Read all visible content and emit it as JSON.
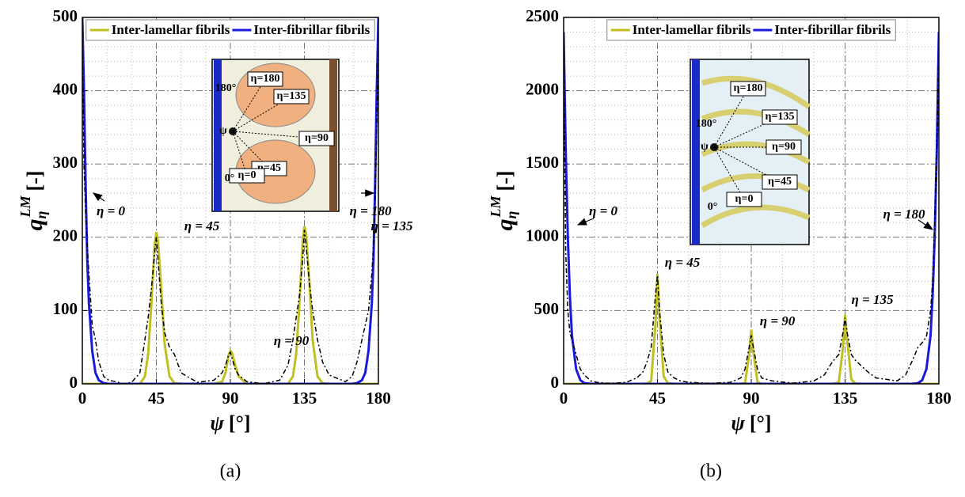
{
  "chart_data": [
    {
      "type": "line",
      "caption": "(a)",
      "xlabel": {
        "var": "ψ",
        "unit": "[°]"
      },
      "ylabel": {
        "base": "q",
        "sub": "η",
        "sup": "LM",
        "unit": "[-]"
      },
      "xlim": [
        0,
        180
      ],
      "xticks": [
        0,
        45,
        90,
        135,
        180
      ],
      "ylim": [
        0,
        500
      ],
      "yticks": [
        0,
        100,
        200,
        300,
        400,
        500
      ],
      "grid": true,
      "legend": "top",
      "x": [
        0,
        1,
        2,
        3,
        4,
        6,
        8,
        10,
        13,
        16,
        20,
        25,
        30,
        35,
        38,
        40,
        42,
        44,
        45,
        46,
        48,
        50,
        53,
        56,
        60,
        70,
        80,
        85,
        87,
        89,
        90,
        91,
        93,
        95,
        100,
        110,
        120,
        125,
        128,
        130,
        132,
        134,
        135,
        136,
        138,
        140,
        143,
        146,
        150,
        160,
        164,
        167,
        170,
        172,
        174,
        176,
        177,
        178,
        179,
        180
      ],
      "series": [
        {
          "name": "Inter-lamellar fibrils",
          "color": "#c0c020",
          "style": "solid",
          "values": [
            0,
            0,
            0,
            0,
            0,
            0,
            0,
            0,
            0,
            0,
            0,
            0,
            0,
            0,
            10,
            40,
            110,
            190,
            207,
            195,
            130,
            55,
            10,
            1,
            0,
            0,
            0,
            3,
            15,
            40,
            45,
            42,
            25,
            10,
            0,
            0,
            0,
            0,
            10,
            40,
            110,
            195,
            215,
            205,
            140,
            60,
            10,
            1,
            0,
            0,
            0,
            0,
            0,
            0,
            0,
            0,
            0,
            0,
            0,
            0
          ]
        },
        {
          "name": "Inter-fibrillar fibrils",
          "color": "#1a1adc",
          "style": "solid",
          "values": [
            500,
            400,
            270,
            170,
            110,
            45,
            15,
            5,
            1,
            0,
            0,
            0,
            0,
            0,
            0,
            0,
            0,
            0,
            0,
            0,
            0,
            0,
            0,
            0,
            0,
            0,
            0,
            0,
            0,
            0,
            0,
            0,
            0,
            0,
            0,
            0,
            0,
            0,
            0,
            0,
            0,
            0,
            0,
            0,
            0,
            0,
            0,
            0,
            0,
            0,
            0,
            1,
            5,
            15,
            45,
            110,
            170,
            270,
            400,
            500
          ]
        },
        {
          "color": "#000000",
          "style": "dashdot",
          "values": [
            480,
            300,
            230,
            190,
            150,
            80,
            60,
            30,
            10,
            5,
            3,
            0,
            2,
            15,
            60,
            90,
            130,
            180,
            200,
            170,
            110,
            70,
            50,
            40,
            15,
            2,
            5,
            15,
            25,
            40,
            43,
            35,
            20,
            12,
            3,
            0,
            5,
            25,
            60,
            90,
            120,
            170,
            210,
            190,
            140,
            100,
            60,
            30,
            12,
            3,
            10,
            30,
            60,
            80,
            100,
            150,
            190,
            250,
            350,
            480
          ]
        }
      ],
      "annotations": [
        "η = 0",
        "η = 45",
        "η = 90",
        "η = 135",
        "η = 180"
      ],
      "inset_labels": [
        "η=180",
        "η=135",
        "η=90",
        "η=45",
        "η=0",
        "180°",
        "0°",
        "ψ"
      ]
    },
    {
      "type": "line",
      "caption": "(b)",
      "xlabel": {
        "var": "ψ",
        "unit": "[°]"
      },
      "ylabel": {
        "base": "q",
        "sub": "η",
        "sup": "LM",
        "unit": "[-]"
      },
      "xlim": [
        0,
        180
      ],
      "xticks": [
        0,
        45,
        90,
        135,
        180
      ],
      "ylim": [
        0,
        2500
      ],
      "yticks": [
        0,
        500,
        1000,
        1500,
        2000,
        2500
      ],
      "grid": true,
      "legend": "top",
      "x": [
        0,
        1,
        2,
        3,
        4,
        6,
        8,
        10,
        13,
        16,
        20,
        25,
        30,
        35,
        38,
        40,
        42,
        44,
        45,
        46,
        48,
        50,
        53,
        56,
        60,
        70,
        80,
        85,
        87,
        89,
        90,
        91,
        93,
        95,
        100,
        110,
        120,
        125,
        128,
        130,
        132,
        134,
        135,
        136,
        138,
        140,
        143,
        146,
        150,
        160,
        164,
        167,
        170,
        172,
        174,
        176,
        177,
        178,
        179,
        180
      ],
      "series": [
        {
          "name": "Inter-lamellar fibrils",
          "color": "#c0c020",
          "style": "solid",
          "values": [
            0,
            0,
            0,
            0,
            0,
            0,
            0,
            0,
            0,
            0,
            0,
            0,
            0,
            0,
            0,
            2,
            20,
            400,
            750,
            450,
            50,
            5,
            0,
            0,
            0,
            0,
            0,
            0,
            5,
            200,
            370,
            220,
            10,
            0,
            0,
            0,
            0,
            0,
            0,
            2,
            10,
            250,
            470,
            300,
            30,
            2,
            0,
            0,
            0,
            0,
            0,
            0,
            0,
            0,
            0,
            0,
            0,
            0,
            0,
            0
          ]
        },
        {
          "name": "Inter-fibrillar fibrils",
          "color": "#1a1adc",
          "style": "solid",
          "values": [
            2400,
            1600,
            1000,
            600,
            330,
            100,
            25,
            5,
            0,
            0,
            0,
            0,
            0,
            0,
            0,
            0,
            0,
            0,
            0,
            0,
            0,
            0,
            0,
            0,
            0,
            0,
            0,
            0,
            0,
            0,
            0,
            0,
            0,
            0,
            0,
            0,
            0,
            0,
            0,
            0,
            0,
            0,
            0,
            0,
            0,
            0,
            0,
            0,
            0,
            0,
            0,
            0,
            5,
            25,
            100,
            330,
            600,
            1000,
            1600,
            2400
          ]
        },
        {
          "color": "#000000",
          "style": "dashdot",
          "values": [
            2300,
            900,
            500,
            350,
            300,
            200,
            100,
            60,
            20,
            10,
            5,
            5,
            10,
            40,
            80,
            150,
            250,
            600,
            740,
            500,
            200,
            80,
            40,
            20,
            10,
            3,
            10,
            40,
            100,
            250,
            330,
            250,
            100,
            40,
            20,
            5,
            20,
            60,
            130,
            170,
            200,
            350,
            450,
            350,
            200,
            160,
            120,
            80,
            40,
            20,
            60,
            150,
            250,
            280,
            320,
            500,
            700,
            1100,
            1600,
            2300
          ]
        }
      ],
      "annotations": [
        "η = 0",
        "η = 45",
        "η = 90",
        "η = 135",
        "η = 180"
      ],
      "inset_labels": [
        "η=180",
        "η=135",
        "η=90",
        "η=45",
        "η=0",
        "180°",
        "ψ",
        "0°"
      ]
    }
  ]
}
